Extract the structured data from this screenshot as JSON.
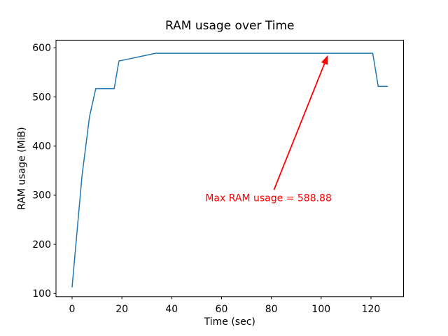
{
  "figure": {
    "background": "#ffffff",
    "frame_color": "#000000"
  },
  "chart_data": {
    "type": "line",
    "title": "RAM usage over Time",
    "xlabel": "Time (sec)",
    "ylabel": "RAM usage (MiB)",
    "xlim": [
      -6.46,
      133.08
    ],
    "ylim": [
      93.6,
      615.5
    ],
    "xticks": [
      0,
      20,
      40,
      60,
      80,
      100,
      120
    ],
    "yticks": [
      100,
      200,
      300,
      400,
      500,
      600
    ],
    "grid": false,
    "legend_position": "none",
    "series": [
      {
        "name": "RAM usage",
        "color": "#1f77b4",
        "line_width": 1.5,
        "points": [
          [
            0,
            113.4
          ],
          [
            4,
            340
          ],
          [
            7,
            460
          ],
          [
            9.5,
            517
          ],
          [
            16.9,
            517
          ],
          [
            18.8,
            573
          ],
          [
            33.5,
            588.88
          ],
          [
            120.7,
            588.88
          ],
          [
            122.9,
            521.5
          ],
          [
            126.6,
            521.5
          ]
        ]
      }
    ],
    "annotation": {
      "text": "Max RAM usage = 588.88",
      "color": "#ff0000",
      "xy": [
        103,
        588.88
      ],
      "text_pos": [
        53.5,
        288
      ]
    },
    "max_value": 588.88
  }
}
